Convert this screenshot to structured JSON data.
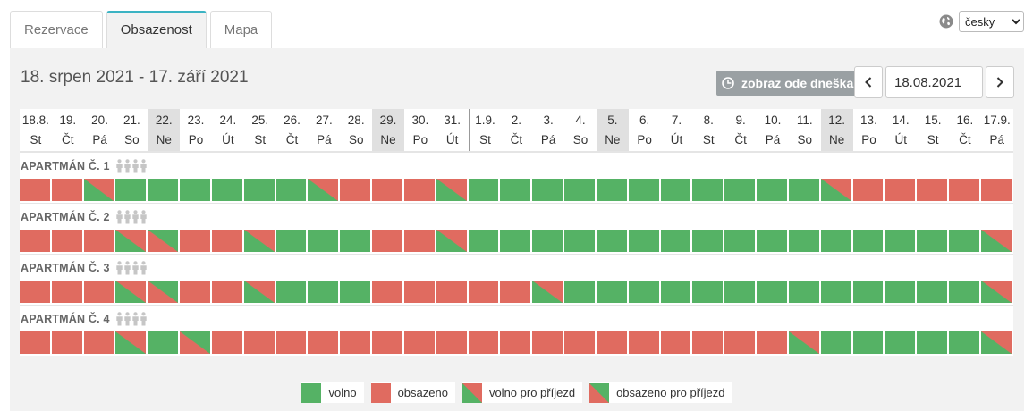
{
  "tabs": [
    {
      "label": "Rezervace",
      "active": false
    },
    {
      "label": "Obsazenost",
      "active": true
    },
    {
      "label": "Mapa",
      "active": false
    }
  ],
  "language": {
    "selected": "česky",
    "icon": "globe-icon"
  },
  "header": {
    "range_title": "18. srpen 2021 - 17. září 2021",
    "today_button": "zobraz ode dneška",
    "date_value": "18.08.2021"
  },
  "days": [
    {
      "date": "18.8.",
      "dow": "St"
    },
    {
      "date": "19.",
      "dow": "Čt"
    },
    {
      "date": "20.",
      "dow": "Pá"
    },
    {
      "date": "21.",
      "dow": "So"
    },
    {
      "date": "22.",
      "dow": "Ne"
    },
    {
      "date": "23.",
      "dow": "Po"
    },
    {
      "date": "24.",
      "dow": "Út"
    },
    {
      "date": "25.",
      "dow": "St"
    },
    {
      "date": "26.",
      "dow": "Čt"
    },
    {
      "date": "27.",
      "dow": "Pá"
    },
    {
      "date": "28.",
      "dow": "So"
    },
    {
      "date": "29.",
      "dow": "Ne"
    },
    {
      "date": "30.",
      "dow": "Po"
    },
    {
      "date": "31.",
      "dow": "Út"
    },
    {
      "date": "1.9.",
      "dow": "St"
    },
    {
      "date": "2.",
      "dow": "Čt"
    },
    {
      "date": "3.",
      "dow": "Pá"
    },
    {
      "date": "4.",
      "dow": "So"
    },
    {
      "date": "5.",
      "dow": "Ne"
    },
    {
      "date": "6.",
      "dow": "Po"
    },
    {
      "date": "7.",
      "dow": "Út"
    },
    {
      "date": "8.",
      "dow": "St"
    },
    {
      "date": "9.",
      "dow": "Čt"
    },
    {
      "date": "10.",
      "dow": "Pá"
    },
    {
      "date": "11.",
      "dow": "So"
    },
    {
      "date": "12.",
      "dow": "Ne"
    },
    {
      "date": "13.",
      "dow": "Po"
    },
    {
      "date": "14.",
      "dow": "Út"
    },
    {
      "date": "15.",
      "dow": "St"
    },
    {
      "date": "16.",
      "dow": "Čt"
    },
    {
      "date": "17.9.",
      "dow": "Pá"
    }
  ],
  "weekend_columns": [
    4,
    11,
    18,
    25
  ],
  "month_break_column": 14,
  "units": [
    {
      "name": "APARTMÁN Č. 1",
      "persons": 4,
      "states": [
        "o",
        "o",
        "fa",
        "f",
        "f",
        "f",
        "f",
        "f",
        "f",
        "fa",
        "o",
        "o",
        "o",
        "fa",
        "f",
        "f",
        "f",
        "f",
        "f",
        "f",
        "f",
        "f",
        "f",
        "f",
        "f",
        "fa",
        "o",
        "o",
        "o",
        "o",
        "o"
      ]
    },
    {
      "name": "APARTMÁN Č. 2",
      "persons": 4,
      "states": [
        "o",
        "o",
        "o",
        "fa",
        "oa",
        "o",
        "o",
        "fa",
        "f",
        "f",
        "f",
        "o",
        "o",
        "fa",
        "f",
        "f",
        "f",
        "f",
        "f",
        "f",
        "f",
        "f",
        "f",
        "f",
        "f",
        "f",
        "f",
        "f",
        "f",
        "f",
        "fa"
      ]
    },
    {
      "name": "APARTMÁN Č. 3",
      "persons": 4,
      "states": [
        "o",
        "o",
        "o",
        "fa",
        "oa",
        "o",
        "o",
        "fa",
        "f",
        "f",
        "f",
        "o",
        "o",
        "o",
        "o",
        "o",
        "fa",
        "f",
        "f",
        "f",
        "f",
        "f",
        "f",
        "f",
        "f",
        "f",
        "f",
        "f",
        "f",
        "f",
        "fa"
      ]
    },
    {
      "name": "APARTMÁN Č. 4",
      "persons": 4,
      "states": [
        "o",
        "o",
        "o",
        "fa",
        "f",
        "oa",
        "o",
        "o",
        "o",
        "o",
        "o",
        "o",
        "o",
        "o",
        "o",
        "o",
        "o",
        "o",
        "o",
        "o",
        "o",
        "o",
        "o",
        "o",
        "fa",
        "f",
        "f",
        "f",
        "f",
        "f",
        "fa"
      ]
    }
  ],
  "legend": [
    {
      "key": "f",
      "label": "volno"
    },
    {
      "key": "o",
      "label": "obsazeno"
    },
    {
      "key": "fa",
      "label": "volno pro příjezd"
    },
    {
      "key": "oa",
      "label": "obsazeno pro příjezd"
    }
  ],
  "colors": {
    "free": "#55b265",
    "occupied": "#e06b60",
    "tab_accent": "#3bb3c3"
  }
}
